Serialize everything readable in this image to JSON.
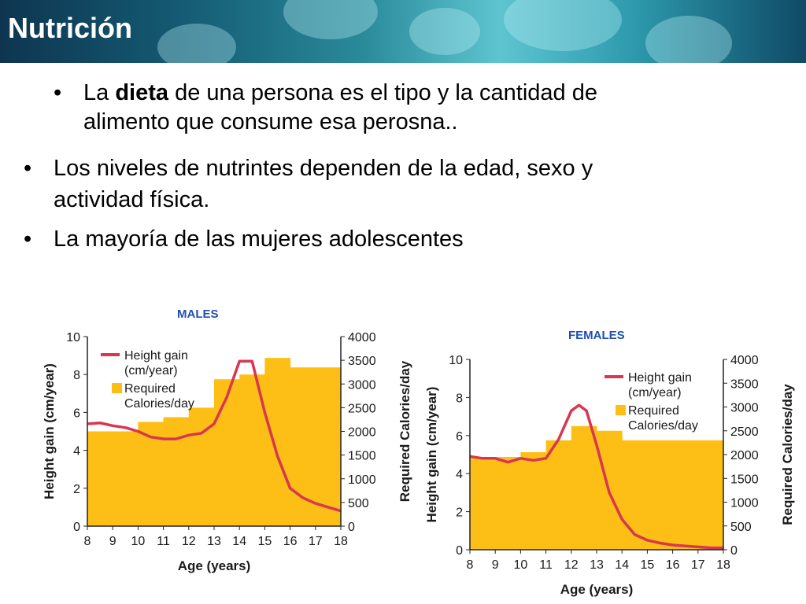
{
  "title": "Nutrición",
  "bullets": [
    {
      "pre": "La ",
      "bold": "dieta",
      "post": " de una persona es el tipo y la cantidad de",
      "line2": "alimento que consume esa perosna.."
    },
    {
      "text": "Los niveles de nutrintes dependen de la edad, sexo y",
      "line2": "actividad física."
    },
    {
      "text": "La mayoría de las mujeres adolescentes"
    }
  ],
  "bullet_char": "•",
  "colors": {
    "bars": "#fdbf15",
    "line": "#d8374f",
    "title_blue": "#1f4fb0"
  },
  "chart_data": [
    {
      "type": "bar+line",
      "title": "MALES",
      "xlabel": "Age (years)",
      "ylabel_left": "Height gain (cm/year)",
      "ylabel_right": "Required Calories/day",
      "x_ticks": [
        8,
        9,
        10,
        11,
        12,
        13,
        14,
        15,
        16,
        17,
        18
      ],
      "ylim_left": [
        0,
        10
      ],
      "ylim_right": [
        0,
        4000
      ],
      "y_ticks_left": [
        0,
        2,
        4,
        6,
        8,
        10
      ],
      "y_ticks_right": [
        0,
        500,
        1000,
        1500,
        2000,
        2500,
        3000,
        3500,
        4000
      ],
      "legend": {
        "line": "Height gain (cm/year)",
        "bar": "Required Calories/day",
        "line_parts": [
          "Height gain",
          "(cm/year)"
        ],
        "bar_parts": [
          "Required",
          "Calories/day"
        ]
      },
      "calories": [
        {
          "from": 8,
          "to": 10,
          "value": 2000
        },
        {
          "from": 10,
          "to": 11,
          "value": 2200
        },
        {
          "from": 11,
          "to": 12,
          "value": 2300
        },
        {
          "from": 12,
          "to": 13,
          "value": 2500
        },
        {
          "from": 13,
          "to": 14,
          "value": 3100
        },
        {
          "from": 14,
          "to": 15,
          "value": 3200
        },
        {
          "from": 15,
          "to": 16,
          "value": 3550
        },
        {
          "from": 16,
          "to": 18,
          "value": 3350
        }
      ],
      "height_gain": {
        "x": [
          8,
          8.5,
          9,
          9.5,
          10,
          10.5,
          11,
          11.5,
          12,
          12.5,
          13,
          13.5,
          14,
          14.5,
          15,
          15.5,
          16,
          16.5,
          17,
          17.5,
          18
        ],
        "y": [
          5.4,
          5.45,
          5.3,
          5.2,
          5.0,
          4.7,
          4.6,
          4.6,
          4.8,
          4.9,
          5.4,
          6.8,
          8.7,
          8.7,
          6.0,
          3.7,
          2.0,
          1.5,
          1.2,
          1.0,
          0.8
        ]
      }
    },
    {
      "type": "bar+line",
      "title": "FEMALES",
      "xlabel": "Age (years)",
      "ylabel_left": "Height gain (cm/year)",
      "ylabel_right": "Required Calories/day",
      "x_ticks": [
        8,
        9,
        10,
        11,
        12,
        13,
        14,
        15,
        16,
        17,
        18
      ],
      "ylim_left": [
        0,
        10
      ],
      "ylim_right": [
        0,
        4000
      ],
      "y_ticks_left": [
        0,
        2,
        4,
        6,
        8,
        10
      ],
      "y_ticks_right": [
        0,
        500,
        1000,
        1500,
        2000,
        2500,
        3000,
        3500,
        4000
      ],
      "legend": {
        "line": "Height gain (cm/year)",
        "bar": "Required Calories/day",
        "line_parts": [
          "Height gain",
          "(cm/year)"
        ],
        "bar_parts": [
          "Required",
          "Calories/day"
        ]
      },
      "calories": [
        {
          "from": 8,
          "to": 10,
          "value": 1950
        },
        {
          "from": 10,
          "to": 11,
          "value": 2050
        },
        {
          "from": 11,
          "to": 12,
          "value": 2300
        },
        {
          "from": 12,
          "to": 13,
          "value": 2600
        },
        {
          "from": 13,
          "to": 14,
          "value": 2500
        },
        {
          "from": 14,
          "to": 18,
          "value": 2300
        }
      ],
      "height_gain": {
        "x": [
          8,
          8.5,
          9,
          9.5,
          10,
          10.5,
          11,
          11.5,
          12,
          12.3,
          12.6,
          13,
          13.5,
          14,
          14.5,
          15,
          15.5,
          16,
          16.5,
          17,
          17.5,
          18
        ],
        "y": [
          4.9,
          4.8,
          4.8,
          4.6,
          4.8,
          4.7,
          4.8,
          5.8,
          7.3,
          7.6,
          7.3,
          5.5,
          3.0,
          1.6,
          0.8,
          0.5,
          0.35,
          0.25,
          0.2,
          0.15,
          0.1,
          0.1
        ]
      }
    }
  ]
}
